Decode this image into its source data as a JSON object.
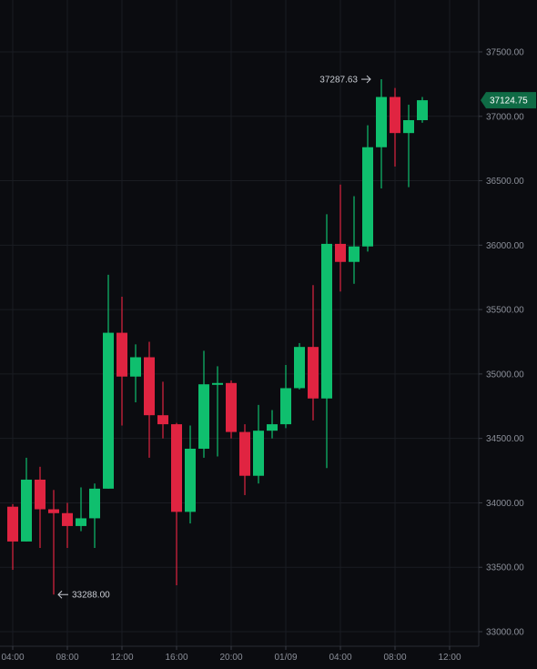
{
  "chart_data": {
    "type": "candlestick",
    "title": "",
    "xlabel": "",
    "ylabel": "",
    "ylim": [
      32990,
      37690
    ],
    "grid": true,
    "colors": {
      "up": "#0fbf6e",
      "down": "#e02441",
      "background": "#0b0c10",
      "grid": "#1a1c22",
      "axis_text": "#8b8f99",
      "price_tag": "#0f6b45"
    },
    "y_ticks": [
      "33000.00",
      "33500.00",
      "34000.00",
      "34500.00",
      "35000.00",
      "35500.00",
      "36000.00",
      "36500.00",
      "37000.00",
      "37500.00"
    ],
    "x_ticks": [
      {
        "label": "04:00",
        "index": 0
      },
      {
        "label": "08:00",
        "index": 4
      },
      {
        "label": "12:00",
        "index": 8
      },
      {
        "label": "16:00",
        "index": 12
      },
      {
        "label": "20:00",
        "index": 16
      },
      {
        "label": "01/09",
        "index": 20
      },
      {
        "label": "04:00",
        "index": 24
      },
      {
        "label": "08:00",
        "index": 28
      },
      {
        "label": "12:00",
        "index": 32
      }
    ],
    "candles": [
      {
        "o": 33970,
        "h": 33990,
        "l": 33480,
        "c": 33700
      },
      {
        "o": 33700,
        "h": 34350,
        "l": 33700,
        "c": 34180
      },
      {
        "o": 34180,
        "h": 34280,
        "l": 33650,
        "c": 33950
      },
      {
        "o": 33950,
        "h": 34100,
        "l": 33288,
        "c": 33920
      },
      {
        "o": 33920,
        "h": 34000,
        "l": 33650,
        "c": 33820
      },
      {
        "o": 33820,
        "h": 34120,
        "l": 33780,
        "c": 33880
      },
      {
        "o": 33880,
        "h": 34150,
        "l": 33650,
        "c": 34110
      },
      {
        "o": 34110,
        "h": 35770,
        "l": 34110,
        "c": 35320
      },
      {
        "o": 35320,
        "h": 35600,
        "l": 34600,
        "c": 34980
      },
      {
        "o": 34980,
        "h": 35230,
        "l": 34780,
        "c": 35130
      },
      {
        "o": 35130,
        "h": 35250,
        "l": 34350,
        "c": 34680
      },
      {
        "o": 34680,
        "h": 34940,
        "l": 34500,
        "c": 34610
      },
      {
        "o": 34610,
        "h": 34620,
        "l": 33360,
        "c": 33930
      },
      {
        "o": 33930,
        "h": 34600,
        "l": 33840,
        "c": 34420
      },
      {
        "o": 34420,
        "h": 35180,
        "l": 34350,
        "c": 34920
      },
      {
        "o": 34920,
        "h": 35060,
        "l": 34360,
        "c": 34930
      },
      {
        "o": 34930,
        "h": 34950,
        "l": 34500,
        "c": 34550
      },
      {
        "o": 34550,
        "h": 34610,
        "l": 34060,
        "c": 34210
      },
      {
        "o": 34210,
        "h": 34760,
        "l": 34150,
        "c": 34560
      },
      {
        "o": 34560,
        "h": 34720,
        "l": 34500,
        "c": 34610
      },
      {
        "o": 34610,
        "h": 35070,
        "l": 34580,
        "c": 34890
      },
      {
        "o": 34890,
        "h": 35240,
        "l": 34880,
        "c": 35210
      },
      {
        "o": 35210,
        "h": 35690,
        "l": 34640,
        "c": 34810
      },
      {
        "o": 34810,
        "h": 36240,
        "l": 34270,
        "c": 36010
      },
      {
        "o": 36010,
        "h": 36470,
        "l": 35640,
        "c": 35870
      },
      {
        "o": 35870,
        "h": 36380,
        "l": 35700,
        "c": 35990
      },
      {
        "o": 35990,
        "h": 36930,
        "l": 35950,
        "c": 36760
      },
      {
        "o": 36760,
        "h": 37287.63,
        "l": 36440,
        "c": 37150
      },
      {
        "o": 37150,
        "h": 37220,
        "l": 36610,
        "c": 36870
      },
      {
        "o": 36870,
        "h": 37090,
        "l": 36450,
        "c": 36970
      },
      {
        "o": 36970,
        "h": 37150,
        "l": 36950,
        "c": 37124.75
      }
    ],
    "annotations": [
      {
        "label": "37287.63",
        "candle_index": 27,
        "price": 37287.63,
        "anchor": "high"
      },
      {
        "label": "33288.00",
        "candle_index": 3,
        "price": 33288,
        "anchor": "low"
      }
    ],
    "last_price": {
      "label": "37124.75",
      "value": 37124.75
    }
  }
}
